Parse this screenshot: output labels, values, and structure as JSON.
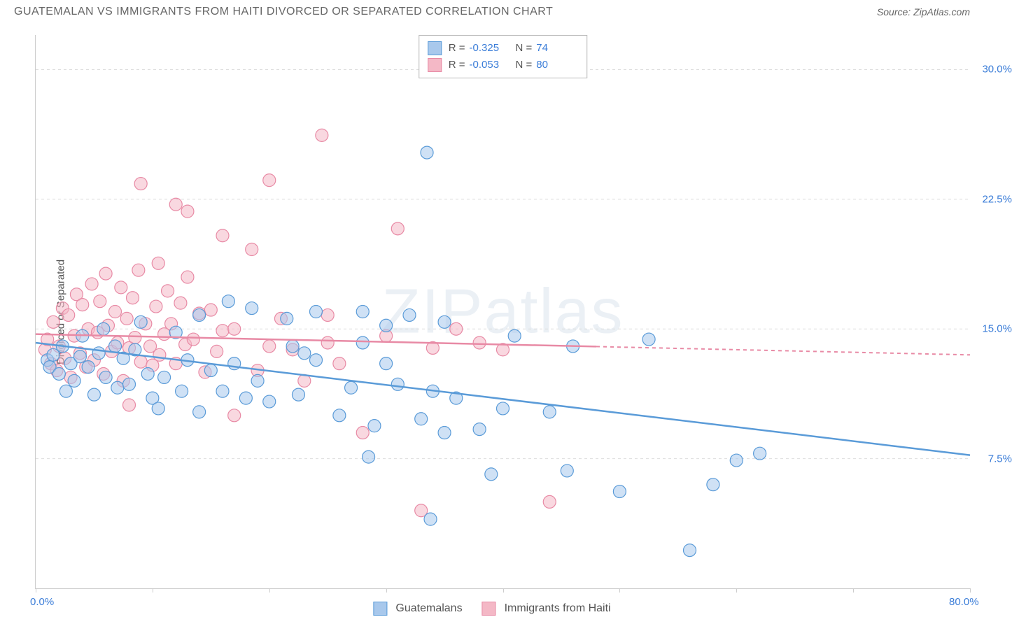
{
  "title": "GUATEMALAN VS IMMIGRANTS FROM HAITI DIVORCED OR SEPARATED CORRELATION CHART",
  "source": "Source: ZipAtlas.com",
  "watermark": "ZIPatlas",
  "y_axis_label": "Divorced or Separated",
  "chart": {
    "type": "scatter",
    "xlim": [
      0,
      80
    ],
    "ylim": [
      0,
      32
    ],
    "x_ticks": [
      0,
      10,
      20,
      30,
      40,
      50,
      60,
      70,
      80
    ],
    "x_tick_labels": {
      "0": "0.0%",
      "80": "80.0%"
    },
    "y_gridlines": [
      7.5,
      15.0,
      22.5,
      30.0
    ],
    "y_tick_labels": {
      "7.5": "7.5%",
      "15.0": "15.0%",
      "22.5": "22.5%",
      "30.0": "30.0%"
    },
    "background_color": "#ffffff",
    "grid_color": "#dddddd",
    "axis_color": "#cccccc",
    "label_color": "#3b7dd8",
    "marker_radius": 9,
    "marker_opacity": 0.55,
    "series": [
      {
        "name": "Guatemalans",
        "color_fill": "#a8c8ec",
        "color_stroke": "#5a9bd8",
        "R": "-0.325",
        "N": "74",
        "regression": {
          "x1": 0,
          "y1": 14.2,
          "x2": 80,
          "y2": 7.7,
          "solid_until_x": 80
        },
        "points": [
          [
            1,
            13.2
          ],
          [
            1.2,
            12.8
          ],
          [
            1.5,
            13.5
          ],
          [
            2,
            12.4
          ],
          [
            2.3,
            14.0
          ],
          [
            2.6,
            11.4
          ],
          [
            3,
            13.0
          ],
          [
            3.3,
            12.0
          ],
          [
            3.8,
            13.4
          ],
          [
            4,
            14.6
          ],
          [
            4.5,
            12.8
          ],
          [
            5,
            11.2
          ],
          [
            5.4,
            13.6
          ],
          [
            5.8,
            15.0
          ],
          [
            6,
            12.2
          ],
          [
            6.8,
            14.0
          ],
          [
            7,
            11.6
          ],
          [
            7.5,
            13.3
          ],
          [
            8,
            11.8
          ],
          [
            8.5,
            13.8
          ],
          [
            9,
            15.4
          ],
          [
            9.6,
            12.4
          ],
          [
            10,
            11.0
          ],
          [
            10.5,
            10.4
          ],
          [
            11,
            12.2
          ],
          [
            12,
            14.8
          ],
          [
            12.5,
            11.4
          ],
          [
            13,
            13.2
          ],
          [
            14,
            10.2
          ],
          [
            15,
            12.6
          ],
          [
            16,
            11.4
          ],
          [
            16.5,
            16.6
          ],
          [
            17,
            13.0
          ],
          [
            18,
            11.0
          ],
          [
            18.5,
            16.2
          ],
          [
            19,
            12.0
          ],
          [
            20,
            10.8
          ],
          [
            21.5,
            15.6
          ],
          [
            22,
            14.0
          ],
          [
            22.5,
            11.2
          ],
          [
            23,
            13.6
          ],
          [
            24,
            16.0
          ],
          [
            26,
            10.0
          ],
          [
            27,
            11.6
          ],
          [
            28,
            14.2
          ],
          [
            28.5,
            7.6
          ],
          [
            29,
            9.4
          ],
          [
            30,
            13.0
          ],
          [
            31,
            11.8
          ],
          [
            32,
            15.8
          ],
          [
            33,
            9.8
          ],
          [
            33.5,
            25.2
          ],
          [
            33.8,
            4.0
          ],
          [
            34,
            11.4
          ],
          [
            35,
            9.0
          ],
          [
            35,
            15.4
          ],
          [
            36,
            11.0
          ],
          [
            38,
            9.2
          ],
          [
            39,
            6.6
          ],
          [
            40,
            10.4
          ],
          [
            41,
            14.6
          ],
          [
            44,
            10.2
          ],
          [
            45.5,
            6.8
          ],
          [
            52.5,
            14.4
          ],
          [
            60,
            7.4
          ],
          [
            62,
            7.8
          ],
          [
            56,
            2.2
          ],
          [
            58,
            6.0
          ],
          [
            50,
            5.6
          ],
          [
            46,
            14.0
          ],
          [
            24,
            13.2
          ],
          [
            28,
            16.0
          ],
          [
            14,
            15.8
          ],
          [
            30,
            15.2
          ]
        ]
      },
      {
        "name": "Immigrants from Haiti",
        "color_fill": "#f4b8c6",
        "color_stroke": "#e88aa5",
        "R": "-0.053",
        "N": "80",
        "regression": {
          "x1": 0,
          "y1": 14.7,
          "x2": 80,
          "y2": 13.5,
          "solid_until_x": 48
        },
        "points": [
          [
            0.8,
            13.8
          ],
          [
            1,
            14.4
          ],
          [
            1.3,
            13.0
          ],
          [
            1.5,
            15.4
          ],
          [
            1.8,
            12.6
          ],
          [
            2,
            14.0
          ],
          [
            2.3,
            16.2
          ],
          [
            2.5,
            13.3
          ],
          [
            2.8,
            15.8
          ],
          [
            3,
            12.2
          ],
          [
            3.3,
            14.6
          ],
          [
            3.5,
            17.0
          ],
          [
            3.8,
            13.6
          ],
          [
            4,
            16.4
          ],
          [
            4.3,
            12.8
          ],
          [
            4.5,
            15.0
          ],
          [
            4.8,
            17.6
          ],
          [
            5,
            13.2
          ],
          [
            5.3,
            14.8
          ],
          [
            5.5,
            16.6
          ],
          [
            5.8,
            12.4
          ],
          [
            6,
            18.2
          ],
          [
            6.2,
            15.2
          ],
          [
            6.5,
            13.7
          ],
          [
            6.8,
            16.0
          ],
          [
            7,
            14.2
          ],
          [
            7.3,
            17.4
          ],
          [
            7.5,
            12.0
          ],
          [
            7.8,
            15.6
          ],
          [
            8,
            13.9
          ],
          [
            8.3,
            16.8
          ],
          [
            8.5,
            14.5
          ],
          [
            8.8,
            18.4
          ],
          [
            9,
            13.1
          ],
          [
            9.4,
            15.3
          ],
          [
            9.8,
            14.0
          ],
          [
            9,
            23.4
          ],
          [
            10,
            12.9
          ],
          [
            10.3,
            16.3
          ],
          [
            10.6,
            13.5
          ],
          [
            11,
            14.7
          ],
          [
            11.3,
            17.2
          ],
          [
            11.6,
            15.3
          ],
          [
            12,
            13.0
          ],
          [
            12.4,
            16.5
          ],
          [
            12.8,
            14.1
          ],
          [
            12,
            22.2
          ],
          [
            13,
            18.0
          ],
          [
            13.5,
            14.4
          ],
          [
            14,
            15.9
          ],
          [
            14.5,
            12.5
          ],
          [
            15,
            16.1
          ],
          [
            15.5,
            13.7
          ],
          [
            16,
            14.9
          ],
          [
            16,
            20.4
          ],
          [
            17,
            15.0
          ],
          [
            17,
            10.0
          ],
          [
            18.5,
            19.6
          ],
          [
            19,
            12.6
          ],
          [
            20,
            14.0
          ],
          [
            20,
            23.6
          ],
          [
            21,
            15.6
          ],
          [
            22,
            13.8
          ],
          [
            23,
            12.0
          ],
          [
            24.5,
            26.2
          ],
          [
            25,
            14.2
          ],
          [
            25,
            15.8
          ],
          [
            26,
            13.0
          ],
          [
            30,
            14.6
          ],
          [
            31,
            20.8
          ],
          [
            34,
            13.9
          ],
          [
            36,
            15.0
          ],
          [
            38,
            14.2
          ],
          [
            40,
            13.8
          ],
          [
            28,
            9.0
          ],
          [
            33,
            4.5
          ],
          [
            44,
            5.0
          ],
          [
            8,
            10.6
          ],
          [
            10.5,
            18.8
          ],
          [
            13,
            21.8
          ]
        ]
      }
    ]
  },
  "legend_bottom": [
    {
      "label": "Guatemalans",
      "fill": "#a8c8ec",
      "stroke": "#5a9bd8"
    },
    {
      "label": "Immigrants from Haiti",
      "fill": "#f4b8c6",
      "stroke": "#e88aa5"
    }
  ]
}
